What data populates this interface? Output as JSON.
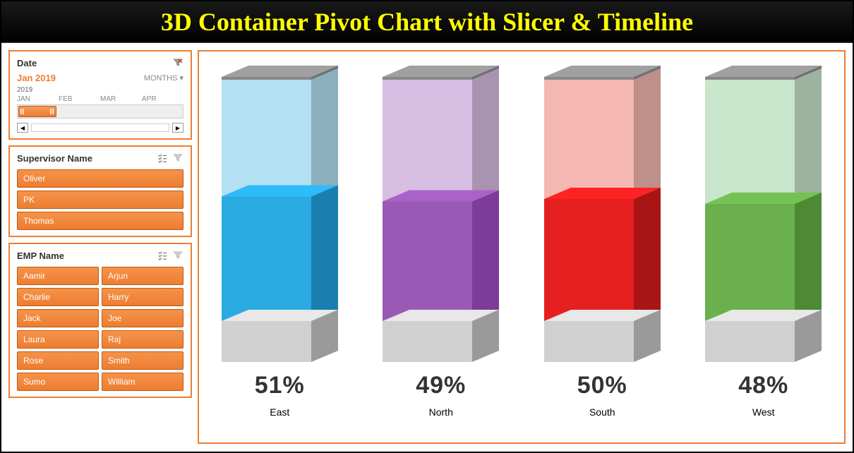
{
  "header": {
    "title": "3D Container Pivot Chart with Slicer & Timeline"
  },
  "timeline": {
    "title": "Date",
    "period": "Jan 2019",
    "unit": "MONTHS",
    "year": "2019",
    "months": [
      "JAN",
      "FEB",
      "MAR",
      "APR"
    ],
    "selected_index": 0
  },
  "supervisor_slicer": {
    "title": "Supervisor Name",
    "items": [
      "Oliver",
      "PK",
      "Thomas"
    ]
  },
  "emp_slicer": {
    "title": "EMP Name",
    "items": [
      "Aamir",
      "Arjun",
      "Charlie",
      "Harry",
      "Jack",
      "Joe",
      "Laura",
      "Raj",
      "Rose",
      "Smith",
      "Sumo",
      "William"
    ]
  },
  "chart": {
    "type": "3d-container-bar",
    "categories": [
      "East",
      "North",
      "South",
      "West"
    ],
    "values": [
      51,
      49,
      50,
      48
    ],
    "fill_colors": [
      "#29abe2",
      "#9b59b6",
      "#e62020",
      "#6ab04c"
    ],
    "light_colors": [
      "#b3e0f2",
      "#d7bde2",
      "#f5b7b1",
      "#c8e6c9"
    ],
    "side_colors": [
      "#1a7fb0",
      "#7d3c98",
      "#a91515",
      "#4e8a35"
    ],
    "top_edge_color": "#a0a0a0",
    "base_front_color": "#d0d0d0",
    "base_side_color": "#9a9a9a",
    "background_color": "#ffffff",
    "border_color": "#ed7d31",
    "label_font": "Agency FB",
    "label_fontsize": 34,
    "category_fontsize": 14
  },
  "accent_color": "#ed7d31"
}
